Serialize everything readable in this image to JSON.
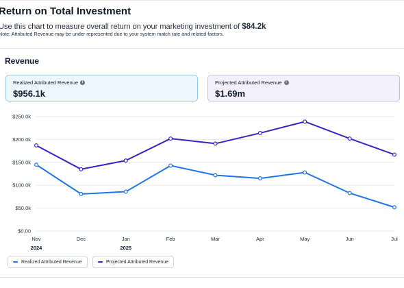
{
  "header": {
    "title": "Return on Total Investment",
    "subtitle_prefix": "Use this chart to measure overall return on your marketing investment of",
    "subtitle_amount": "$84.2k",
    "note": "Note: Attributed Revenue may be under represented due to your system match rate and related factors."
  },
  "section": {
    "title": "Revenue"
  },
  "cards": {
    "realized": {
      "label": "Realized Attributed Revenue",
      "value": "$956.1k",
      "icon": "info-icon"
    },
    "projected": {
      "label": "Projected Attributed Revenue",
      "value": "$1.69m",
      "icon": "info-icon"
    }
  },
  "colors": {
    "realized": "#1f74e6",
    "projected": "#3d1fc4",
    "grid": "#e6e8eb"
  },
  "chart_data": {
    "type": "line",
    "x": [
      "Nov",
      "Dec",
      "Jan",
      "Feb",
      "Mar",
      "Apr",
      "May",
      "Jun",
      "Jul"
    ],
    "x_year_labels": {
      "Nov": "2024",
      "Jan": "2025"
    },
    "y_ticks": [
      "$0.00",
      "$50.0k",
      "$100.0k",
      "$150.0k",
      "$200.0k",
      "$250.0k"
    ],
    "ylim": [
      0,
      250000
    ],
    "grid": true,
    "legend_position": "bottom-left",
    "series": [
      {
        "name": "Realized Attributed Revenue",
        "key": "realized",
        "values": [
          145000,
          81000,
          86000,
          143000,
          122000,
          115000,
          128000,
          83000,
          52000
        ]
      },
      {
        "name": "Projected Attributed Revenue",
        "key": "projected",
        "values": [
          187000,
          135000,
          154000,
          202000,
          191000,
          214000,
          239000,
          202000,
          167000
        ]
      }
    ]
  }
}
